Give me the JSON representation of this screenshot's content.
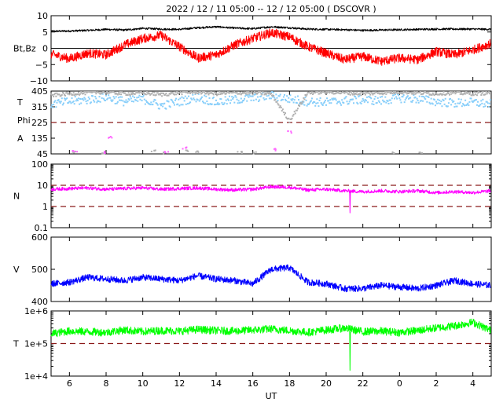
{
  "title": "2022 / 12 / 11   05:00 -- 12 / 12   05:00 ( DSCOVR )",
  "xlabel": "UT",
  "x_ticks": [
    "6",
    "8",
    "10",
    "12",
    "14",
    "16",
    "18",
    "20",
    "22",
    "0",
    "2",
    "4"
  ],
  "colors": {
    "bt": "#000000",
    "bz": "#ff0000",
    "theta": "#87cefa",
    "phi": "#b0b0b0",
    "phi_alt": "#ff66ff",
    "density": "#ff00ff",
    "speed": "#0000ff",
    "temperature": "#00ff00",
    "reference": "#8b1a1a"
  },
  "chart_data": [
    {
      "type": "line",
      "panel": "mag",
      "ylabel": "Bt,Bz",
      "ylim": [
        -10,
        10
      ],
      "yticks": [
        "10",
        "5",
        "0",
        "−5",
        "−10"
      ],
      "zero_line": 0,
      "x": [
        5,
        6,
        7,
        8,
        9,
        10,
        11,
        12,
        13,
        14,
        15,
        16,
        17,
        18,
        19,
        20,
        21,
        22,
        23,
        24,
        25,
        26,
        27,
        28,
        29
      ],
      "series": [
        {
          "key": "bt",
          "values": [
            5.2,
            5.3,
            5.5,
            5.8,
            5.6,
            6.1,
            5.9,
            5.8,
            6.3,
            6.6,
            6.2,
            6.0,
            6.6,
            6.3,
            5.9,
            5.8,
            5.7,
            5.5,
            5.6,
            5.7,
            5.8,
            5.9,
            5.9,
            5.9,
            5.8
          ]
        },
        {
          "key": "bz",
          "values": [
            -1.8,
            -3.2,
            -1.5,
            -2.0,
            1.0,
            3.0,
            4.0,
            0.5,
            -3.0,
            -2.0,
            1.0,
            3.0,
            4.8,
            3.5,
            0.5,
            -1.5,
            -3.5,
            -2.5,
            -4.0,
            -3.0,
            -3.5,
            -1.0,
            -2.0,
            -0.5,
            1.5
          ]
        }
      ]
    },
    {
      "type": "scatter",
      "panel": "angles",
      "ylabel_lines": [
        "T",
        "Phi",
        "A"
      ],
      "ylim": [
        45,
        405
      ],
      "yticks": [
        "405",
        "315",
        "225",
        "135",
        "45"
      ],
      "reference_lines": [
        225
      ],
      "x": [
        5,
        6,
        7,
        8,
        9,
        10,
        11,
        12,
        13,
        14,
        15,
        16,
        17,
        18,
        19,
        20,
        21,
        22,
        23,
        24,
        25,
        26,
        27,
        28,
        29
      ],
      "series": [
        {
          "key": "theta",
          "values": [
            330,
            345,
            355,
            370,
            345,
            360,
            320,
            345,
            370,
            340,
            355,
            365,
            380,
            360,
            345,
            340,
            350,
            355,
            350,
            365,
            360,
            345,
            335,
            340,
            330
          ]
        },
        {
          "key": "phi",
          "values": [
            380,
            390,
            395,
            400,
            390,
            395,
            385,
            395,
            400,
            390,
            395,
            395,
            390,
            235,
            395,
            400,
            395,
            390,
            395,
            400,
            395,
            390,
            395,
            390,
            395
          ]
        }
      ],
      "low_points": [
        {
          "key": "phi",
          "x": [
            6.2,
            7.9,
            10.6,
            11.1,
            12.4,
            13.0,
            15.3,
            16.1,
            23.6,
            25.2
          ],
          "y": [
            55,
            52,
            60,
            50,
            62,
            58,
            55,
            50,
            50,
            52
          ]
        },
        {
          "key": "phi_alt",
          "x": [
            6.3,
            8.0,
            8.2,
            11.3,
            12.3,
            17.2,
            18.0
          ],
          "y": [
            60,
            55,
            140,
            52,
            78,
            70,
            170
          ]
        }
      ]
    },
    {
      "type": "line",
      "panel": "density",
      "ylabel": "N",
      "scale": "log",
      "ylim": [
        0.1,
        100
      ],
      "yticks": [
        "100",
        "10",
        "1",
        "0.1"
      ],
      "reference_lines": [
        10,
        1
      ],
      "x": [
        5,
        6,
        7,
        8,
        9,
        10,
        11,
        12,
        13,
        14,
        15,
        16,
        17,
        18,
        19,
        20,
        21,
        22,
        23,
        24,
        25,
        26,
        27,
        28,
        29
      ],
      "series": [
        {
          "key": "density",
          "values": [
            6.5,
            7.0,
            7.5,
            6.5,
            7.0,
            7.5,
            6.5,
            7.0,
            7.5,
            6.5,
            6.0,
            6.5,
            8.5,
            8.0,
            6.0,
            6.5,
            5.5,
            5.0,
            5.5,
            5.0,
            5.5,
            4.5,
            5.0,
            4.5,
            5.5
          ]
        }
      ],
      "spike": {
        "x": 21.3,
        "y": 0.5
      }
    },
    {
      "type": "line",
      "panel": "speed",
      "ylabel": "V",
      "ylim": [
        400,
        600
      ],
      "yticks": [
        "600",
        "500",
        "400"
      ],
      "x": [
        5,
        6,
        7,
        8,
        9,
        10,
        11,
        12,
        13,
        14,
        15,
        16,
        17,
        18,
        19,
        20,
        21,
        22,
        23,
        24,
        25,
        26,
        27,
        28,
        29
      ],
      "series": [
        {
          "key": "speed",
          "values": [
            455,
            460,
            475,
            470,
            465,
            475,
            470,
            465,
            480,
            470,
            465,
            455,
            500,
            505,
            460,
            455,
            440,
            440,
            450,
            445,
            440,
            450,
            465,
            455,
            450
          ]
        }
      ]
    },
    {
      "type": "line",
      "panel": "temperature",
      "ylabel": "T",
      "scale": "log",
      "ylim": [
        10000,
        1000000
      ],
      "yticks": [
        "1e+6",
        "1e+5",
        "1e+4"
      ],
      "reference_lines": [
        100000
      ],
      "x": [
        5,
        6,
        7,
        8,
        9,
        10,
        11,
        12,
        13,
        14,
        15,
        16,
        17,
        18,
        19,
        20,
        21,
        22,
        23,
        24,
        25,
        26,
        27,
        28,
        29
      ],
      "series": [
        {
          "key": "temperature",
          "values": [
            200000,
            240000,
            230000,
            220000,
            260000,
            230000,
            250000,
            240000,
            270000,
            250000,
            240000,
            260000,
            280000,
            250000,
            220000,
            260000,
            300000,
            230000,
            240000,
            220000,
            250000,
            300000,
            350000,
            450000,
            250000
          ]
        }
      ],
      "spike": {
        "x": 21.3,
        "y": 15000
      }
    }
  ]
}
